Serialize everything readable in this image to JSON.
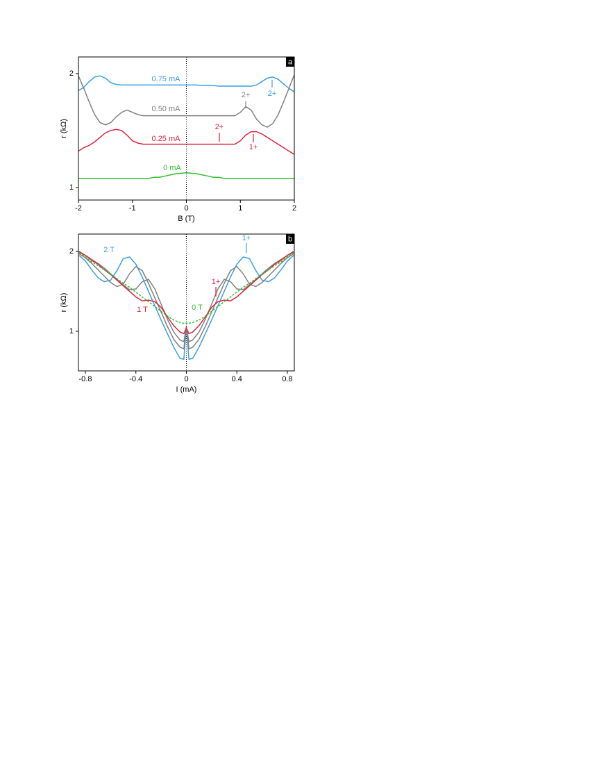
{
  "chart_data": [
    {
      "type": "line",
      "panel_label": "a",
      "x_label": "B (T)",
      "y_label": "r (kΩ)",
      "xlim": [
        -2,
        2
      ],
      "xticks": [
        -2,
        -1,
        0,
        1,
        2
      ],
      "ylim": [
        0.89,
        2.146
      ],
      "yticks": [
        1,
        2
      ],
      "x": [
        -2,
        -1.9,
        -1.8,
        -1.7,
        -1.6,
        -1.5,
        -1.4,
        -1.3,
        -1.2,
        -1.1,
        -1,
        -0.9,
        -0.8,
        -0.7,
        -0.6,
        -0.5,
        -0.4,
        -0.3,
        -0.2,
        -0.1,
        0,
        0.1,
        0.2,
        0.3,
        0.4,
        0.5,
        0.6,
        0.7,
        0.8,
        0.9,
        1,
        1.1,
        1.2,
        1.3,
        1.4,
        1.5,
        1.6,
        1.7,
        1.8,
        1.9,
        2
      ],
      "series": [
        {
          "name": "0.75 mA",
          "color": "#3a9ee4",
          "values": [
            1.85,
            1.88,
            1.93,
            1.97,
            1.98,
            1.96,
            1.92,
            1.905,
            1.9,
            1.9,
            1.9,
            1.9,
            1.9,
            1.9,
            1.9,
            1.9,
            1.9,
            1.9,
            1.9,
            1.9,
            1.9,
            1.9,
            1.9,
            1.895,
            1.895,
            1.895,
            1.89,
            1.89,
            1.89,
            1.89,
            1.89,
            1.89,
            1.89,
            1.9,
            1.93,
            1.96,
            1.97,
            1.95,
            1.91,
            1.87,
            1.84
          ]
        },
        {
          "name": "0.50 mA",
          "color": "#808080",
          "values": [
            1.98,
            1.87,
            1.75,
            1.64,
            1.57,
            1.55,
            1.57,
            1.62,
            1.66,
            1.68,
            1.66,
            1.64,
            1.63,
            1.63,
            1.63,
            1.63,
            1.63,
            1.63,
            1.63,
            1.63,
            1.63,
            1.63,
            1.63,
            1.63,
            1.63,
            1.63,
            1.63,
            1.63,
            1.63,
            1.63,
            1.66,
            1.71,
            1.68,
            1.6,
            1.55,
            1.53,
            1.56,
            1.64,
            1.75,
            1.87,
            1.99
          ]
        },
        {
          "name": "0.25 mA",
          "color": "#e0203c",
          "values": [
            1.32,
            1.35,
            1.37,
            1.4,
            1.44,
            1.48,
            1.5,
            1.51,
            1.5,
            1.46,
            1.41,
            1.39,
            1.38,
            1.38,
            1.38,
            1.38,
            1.38,
            1.38,
            1.38,
            1.38,
            1.38,
            1.38,
            1.38,
            1.38,
            1.38,
            1.38,
            1.38,
            1.38,
            1.38,
            1.38,
            1.41,
            1.46,
            1.49,
            1.49,
            1.47,
            1.44,
            1.41,
            1.38,
            1.35,
            1.32,
            1.29
          ]
        },
        {
          "name": "0 mA",
          "color": "#2ec02e",
          "values": [
            1.08,
            1.08,
            1.08,
            1.08,
            1.08,
            1.08,
            1.08,
            1.08,
            1.08,
            1.08,
            1.08,
            1.08,
            1.08,
            1.08,
            1.09,
            1.09,
            1.1,
            1.11,
            1.12,
            1.125,
            1.13,
            1.125,
            1.12,
            1.11,
            1.1,
            1.09,
            1.09,
            1.08,
            1.08,
            1.08,
            1.08,
            1.08,
            1.08,
            1.08,
            1.08,
            1.08,
            1.08,
            1.08,
            1.08,
            1.08,
            1.08
          ]
        }
      ],
      "annotations": [
        {
          "text": "2+",
          "color": "#808080"
        },
        {
          "text": "2+",
          "color": "#3a9ee4"
        },
        {
          "text": "2+",
          "color": "#e0203c"
        },
        {
          "text": "1+",
          "color": "#e0203c"
        }
      ]
    },
    {
      "type": "line",
      "panel_label": "b",
      "x_label": "I (mA)",
      "y_label": "r (kΩ)",
      "xlim": [
        -0.855,
        0.855
      ],
      "xticks": [
        -0.8,
        -0.4,
        0,
        0.4,
        0.8
      ],
      "ylim": [
        0.504,
        2.217
      ],
      "yticks": [
        1,
        2
      ],
      "x": [
        -0.85,
        -0.8,
        -0.75,
        -0.7,
        -0.65,
        -0.6,
        -0.55,
        -0.5,
        -0.45,
        -0.4,
        -0.35,
        -0.3,
        -0.25,
        -0.2,
        -0.15,
        -0.1,
        -0.05,
        -0.02,
        0,
        0.02,
        0.05,
        0.1,
        0.15,
        0.2,
        0.25,
        0.3,
        0.35,
        0.4,
        0.45,
        0.5,
        0.55,
        0.6,
        0.65,
        0.7,
        0.75,
        0.8,
        0.85
      ],
      "series": [
        {
          "name": "2 T",
          "color": "#3a9ee4",
          "values": [
            1.95,
            1.88,
            1.77,
            1.67,
            1.62,
            1.64,
            1.76,
            1.91,
            1.93,
            1.84,
            1.68,
            1.5,
            1.32,
            1.14,
            0.97,
            0.8,
            0.66,
            0.65,
            1.06,
            0.65,
            0.66,
            0.8,
            0.97,
            1.14,
            1.32,
            1.5,
            1.68,
            1.84,
            1.93,
            1.91,
            1.76,
            1.64,
            1.62,
            1.67,
            1.77,
            1.88,
            1.95
          ]
        },
        {
          "color": "#808080",
          "values": [
            1.97,
            1.92,
            1.85,
            1.77,
            1.69,
            1.61,
            1.56,
            1.59,
            1.72,
            1.81,
            1.76,
            1.6,
            1.42,
            1.24,
            1.06,
            0.9,
            0.8,
            0.78,
            1.06,
            0.78,
            0.8,
            0.9,
            1.06,
            1.24,
            1.42,
            1.6,
            1.76,
            1.81,
            1.72,
            1.59,
            1.56,
            1.61,
            1.69,
            1.77,
            1.85,
            1.92,
            1.97
          ]
        },
        {
          "color": "#808080",
          "values": [
            1.99,
            1.95,
            1.9,
            1.85,
            1.79,
            1.72,
            1.65,
            1.58,
            1.52,
            1.53,
            1.62,
            1.65,
            1.53,
            1.34,
            1.15,
            0.99,
            0.89,
            0.87,
            1.05,
            0.87,
            0.89,
            0.99,
            1.15,
            1.34,
            1.53,
            1.65,
            1.62,
            1.53,
            1.52,
            1.58,
            1.65,
            1.72,
            1.79,
            1.85,
            1.9,
            1.95,
            1.99
          ]
        },
        {
          "name": "1 T",
          "color": "#e0203c",
          "values": [
            2,
            1.95,
            1.89,
            1.84,
            1.77,
            1.71,
            1.64,
            1.57,
            1.5,
            1.43,
            1.38,
            1.39,
            1.37,
            1.3,
            1.18,
            1.07,
            0.99,
            0.97,
            1.04,
            0.97,
            0.99,
            1.07,
            1.18,
            1.3,
            1.37,
            1.39,
            1.38,
            1.43,
            1.5,
            1.57,
            1.64,
            1.71,
            1.77,
            1.84,
            1.89,
            1.95,
            2
          ]
        },
        {
          "name": "0 T",
          "color": "#2ec02e",
          "dashed": true,
          "values": [
            1.98,
            1.93,
            1.87,
            1.82,
            1.77,
            1.71,
            1.66,
            1.6,
            1.55,
            1.49,
            1.43,
            1.37,
            1.31,
            1.25,
            1.19,
            1.14,
            1.11,
            1.1,
            1.1,
            1.1,
            1.11,
            1.14,
            1.19,
            1.25,
            1.31,
            1.37,
            1.43,
            1.49,
            1.55,
            1.6,
            1.66,
            1.71,
            1.77,
            1.82,
            1.87,
            1.93,
            1.98
          ]
        }
      ],
      "annotations": [
        {
          "text": "1+",
          "color": "#3a9ee4"
        },
        {
          "text": "1+",
          "color": "#e0203c"
        }
      ]
    }
  ]
}
